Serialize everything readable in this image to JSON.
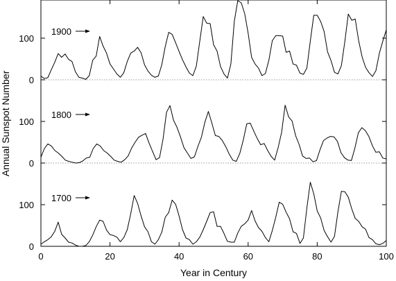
{
  "chart_data": {
    "type": "line",
    "title": "",
    "xlabel": "Year in Century",
    "ylabel": "Annual Sunspot Number",
    "xlim": [
      0,
      100
    ],
    "xticks": [
      0,
      20,
      40,
      60,
      80,
      100
    ],
    "yticks": [
      0,
      100
    ],
    "panel_ylim": [
      0,
      200
    ],
    "grid": false,
    "legend": "none",
    "line_color": "#000000",
    "baseline_color": "#9a9a9a",
    "series": [
      {
        "name": "1900",
        "values": [
          9,
          3,
          5,
          24,
          42,
          63,
          54,
          62,
          49,
          44,
          19,
          6,
          4,
          1,
          10,
          47,
          57,
          104,
          81,
          64,
          38,
          26,
          14,
          6,
          17,
          44,
          64,
          69,
          78,
          65,
          36,
          21,
          11,
          6,
          9,
          36,
          80,
          114,
          109,
          89,
          68,
          48,
          31,
          16,
          10,
          33,
          93,
          152,
          136,
          135,
          84,
          69,
          32,
          14,
          4,
          38,
          141,
          190,
          185,
          159,
          112,
          54,
          38,
          28,
          10,
          15,
          47,
          94,
          106,
          106,
          105,
          66,
          69,
          38,
          35,
          16,
          13,
          28,
          93,
          155,
          155,
          140,
          116,
          67,
          46,
          18,
          14,
          34,
          92,
          158,
          143,
          146,
          94,
          55,
          30,
          17,
          8,
          22,
          64,
          93,
          120
        ]
      },
      {
        "name": "1800",
        "values": [
          14,
          35,
          46,
          41,
          30,
          24,
          16,
          7,
          4,
          2,
          0,
          1,
          5,
          12,
          14,
          35,
          46,
          41,
          30,
          24,
          16,
          7,
          4,
          2,
          8,
          17,
          36,
          50,
          62,
          67,
          71,
          48,
          28,
          8,
          13,
          57,
          122,
          138,
          103,
          86,
          63,
          37,
          24,
          11,
          15,
          40,
          62,
          98,
          124,
          96,
          66,
          64,
          54,
          39,
          21,
          7,
          4,
          23,
          55,
          94,
          96,
          77,
          59,
          44,
          47,
          30,
          16,
          7,
          37,
          74,
          139,
          111,
          101,
          66,
          45,
          17,
          11,
          12,
          3,
          6,
          32,
          54,
          60,
          64,
          63,
          52,
          25,
          13,
          7,
          6,
          36,
          73,
          85,
          78,
          64,
          42,
          26,
          27,
          12,
          10
        ]
      },
      {
        "name": "1700",
        "values": [
          5,
          11,
          16,
          23,
          36,
          58,
          29,
          20,
          10,
          8,
          3,
          0,
          0,
          2,
          11,
          27,
          47,
          63,
          60,
          39,
          28,
          26,
          22,
          11,
          21,
          40,
          78,
          122,
          103,
          73,
          47,
          35,
          11,
          5,
          16,
          34,
          70,
          81,
          111,
          101,
          73,
          40,
          20,
          16,
          5,
          11,
          22,
          40,
          60,
          81,
          83,
          48,
          48,
          31,
          12,
          10,
          10,
          32,
          48,
          54,
          63,
          86,
          61,
          45,
          36,
          21,
          11,
          38,
          70,
          106,
          101,
          82,
          66,
          35,
          31,
          7,
          20,
          92,
          154,
          126,
          85,
          68,
          38,
          23,
          10,
          24,
          83,
          132,
          131,
          118,
          90,
          67,
          60,
          47,
          41,
          21,
          16,
          6,
          4,
          7,
          14
        ]
      }
    ]
  }
}
